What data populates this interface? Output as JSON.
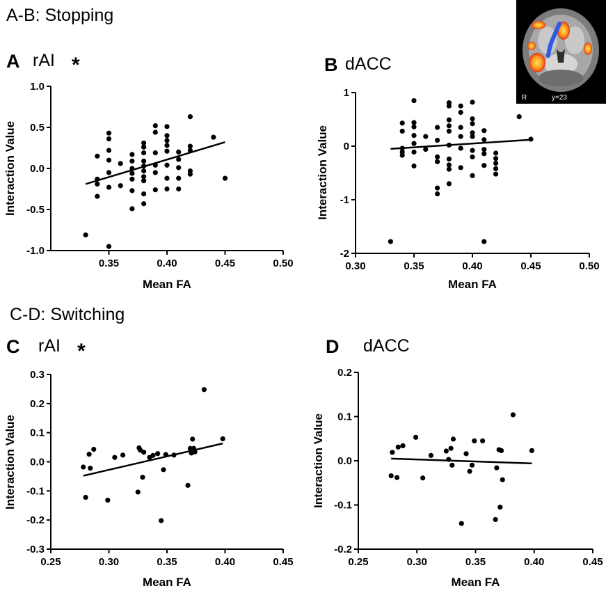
{
  "sections": {
    "stopping": "A-B: Stopping",
    "switching": "C-D: Switching"
  },
  "panels": [
    {
      "letter": "A",
      "name": "rAI",
      "significance": "*"
    },
    {
      "letter": "B",
      "name": "dACC",
      "significance": ""
    },
    {
      "letter": "C",
      "name": "rAI",
      "significance": "*"
    },
    {
      "letter": "D",
      "name": "dACC",
      "significance": ""
    }
  ],
  "inset": {
    "orientation": "R",
    "slice": "y=23"
  },
  "chart_data": [
    {
      "type": "scatter",
      "title": "rAI",
      "xlabel": "Mean FA",
      "ylabel": "Interaction Value",
      "xlim": [
        0.3,
        0.5
      ],
      "ylim": [
        -1.0,
        1.0
      ],
      "xticks": [
        "0.35",
        "0.40",
        "0.45",
        "0.50"
      ],
      "yticks": [
        "-1.0",
        "-0.5",
        "0.0",
        "0.5",
        "1.0"
      ],
      "points": [
        [
          0.33,
          -0.81
        ],
        [
          0.34,
          0.15
        ],
        [
          0.34,
          -0.13
        ],
        [
          0.34,
          -0.19
        ],
        [
          0.34,
          -0.34
        ],
        [
          0.35,
          0.43
        ],
        [
          0.35,
          0.36
        ],
        [
          0.35,
          0.22
        ],
        [
          0.35,
          0.1
        ],
        [
          0.35,
          -0.05
        ],
        [
          0.35,
          -0.23
        ],
        [
          0.35,
          -0.95
        ],
        [
          0.36,
          0.06
        ],
        [
          0.36,
          -0.21
        ],
        [
          0.37,
          0.17
        ],
        [
          0.37,
          0.09
        ],
        [
          0.37,
          0.0
        ],
        [
          0.37,
          -0.06
        ],
        [
          0.37,
          -0.13
        ],
        [
          0.37,
          -0.27
        ],
        [
          0.37,
          -0.49
        ],
        [
          0.38,
          0.31
        ],
        [
          0.38,
          0.26
        ],
        [
          0.38,
          0.19
        ],
        [
          0.38,
          0.09
        ],
        [
          0.38,
          0.03
        ],
        [
          0.38,
          -0.03
        ],
        [
          0.38,
          -0.1
        ],
        [
          0.38,
          -0.15
        ],
        [
          0.38,
          -0.31
        ],
        [
          0.38,
          -0.43
        ],
        [
          0.39,
          0.52
        ],
        [
          0.39,
          0.44
        ],
        [
          0.39,
          0.19
        ],
        [
          0.39,
          0.04
        ],
        [
          0.39,
          -0.05
        ],
        [
          0.39,
          -0.26
        ],
        [
          0.4,
          0.51
        ],
        [
          0.4,
          0.4
        ],
        [
          0.4,
          0.34
        ],
        [
          0.4,
          0.28
        ],
        [
          0.4,
          0.21
        ],
        [
          0.4,
          0.04
        ],
        [
          0.4,
          -0.12
        ],
        [
          0.4,
          -0.25
        ],
        [
          0.41,
          0.2
        ],
        [
          0.41,
          0.11
        ],
        [
          0.41,
          0.01
        ],
        [
          0.41,
          -0.12
        ],
        [
          0.41,
          -0.25
        ],
        [
          0.42,
          0.63
        ],
        [
          0.42,
          0.27
        ],
        [
          0.42,
          0.22
        ],
        [
          0.42,
          -0.03
        ],
        [
          0.42,
          -0.07
        ],
        [
          0.44,
          0.38
        ],
        [
          0.45,
          -0.12
        ]
      ],
      "fit": [
        [
          0.33,
          -0.19
        ],
        [
          0.45,
          0.32
        ]
      ]
    },
    {
      "type": "scatter",
      "title": "dACC",
      "xlabel": "Mean FA",
      "ylabel": "Interaction Value",
      "xlim": [
        0.3,
        0.5
      ],
      "ylim": [
        -2,
        1
      ],
      "xticks": [
        "0.30",
        "0.35",
        "0.40",
        "0.45",
        "0.50"
      ],
      "yticks": [
        "-2",
        "-1",
        "0",
        "1"
      ],
      "points": [
        [
          0.33,
          -1.78
        ],
        [
          0.34,
          0.43
        ],
        [
          0.34,
          0.28
        ],
        [
          0.34,
          -0.04
        ],
        [
          0.34,
          -0.11
        ],
        [
          0.34,
          -0.17
        ],
        [
          0.35,
          0.85
        ],
        [
          0.35,
          0.44
        ],
        [
          0.35,
          0.36
        ],
        [
          0.35,
          0.2
        ],
        [
          0.35,
          0.05
        ],
        [
          0.35,
          -0.11
        ],
        [
          0.35,
          -0.37
        ],
        [
          0.36,
          0.18
        ],
        [
          0.36,
          -0.06
        ],
        [
          0.37,
          0.35
        ],
        [
          0.37,
          0.11
        ],
        [
          0.37,
          -0.2
        ],
        [
          0.37,
          -0.29
        ],
        [
          0.37,
          -0.78
        ],
        [
          0.37,
          -0.89
        ],
        [
          0.38,
          0.81
        ],
        [
          0.38,
          0.75
        ],
        [
          0.38,
          0.49
        ],
        [
          0.38,
          0.38
        ],
        [
          0.38,
          0.28
        ],
        [
          0.38,
          0.02
        ],
        [
          0.38,
          -0.24
        ],
        [
          0.38,
          -0.35
        ],
        [
          0.38,
          -0.43
        ],
        [
          0.38,
          -0.7
        ],
        [
          0.39,
          0.75
        ],
        [
          0.39,
          0.63
        ],
        [
          0.39,
          0.35
        ],
        [
          0.39,
          0.18
        ],
        [
          0.39,
          -0.04
        ],
        [
          0.39,
          -0.4
        ],
        [
          0.4,
          0.82
        ],
        [
          0.4,
          0.51
        ],
        [
          0.4,
          0.42
        ],
        [
          0.4,
          0.25
        ],
        [
          0.4,
          0.18
        ],
        [
          0.4,
          -0.08
        ],
        [
          0.4,
          -0.2
        ],
        [
          0.4,
          -0.55
        ],
        [
          0.41,
          0.29
        ],
        [
          0.41,
          0.12
        ],
        [
          0.41,
          -0.06
        ],
        [
          0.41,
          -0.14
        ],
        [
          0.41,
          -0.36
        ],
        [
          0.41,
          -1.78
        ],
        [
          0.42,
          -0.13
        ],
        [
          0.42,
          -0.23
        ],
        [
          0.42,
          -0.32
        ],
        [
          0.42,
          -0.42
        ],
        [
          0.42,
          -0.52
        ],
        [
          0.44,
          0.55
        ],
        [
          0.45,
          0.13
        ]
      ],
      "fit": [
        [
          0.33,
          -0.05
        ],
        [
          0.45,
          0.12
        ]
      ]
    },
    {
      "type": "scatter",
      "title": "rAI",
      "xlabel": "Mean FA",
      "ylabel": "Interaction Value",
      "xlim": [
        0.25,
        0.45
      ],
      "ylim": [
        -0.3,
        0.3
      ],
      "xticks": [
        "0.25",
        "0.30",
        "0.35",
        "0.40",
        "0.45"
      ],
      "yticks": [
        "-0.3",
        "-0.2",
        "-0.1",
        "0.0",
        "0.1",
        "0.2",
        "0.3"
      ],
      "points": [
        [
          0.278,
          -0.018
        ],
        [
          0.28,
          -0.122
        ],
        [
          0.283,
          0.026
        ],
        [
          0.284,
          -0.022
        ],
        [
          0.287,
          0.043
        ],
        [
          0.299,
          -0.132
        ],
        [
          0.305,
          0.015
        ],
        [
          0.312,
          0.023
        ],
        [
          0.325,
          -0.104
        ],
        [
          0.326,
          0.048
        ],
        [
          0.327,
          0.04
        ],
        [
          0.329,
          -0.053
        ],
        [
          0.33,
          0.033
        ],
        [
          0.335,
          0.015
        ],
        [
          0.338,
          0.022
        ],
        [
          0.342,
          0.028
        ],
        [
          0.345,
          -0.202
        ],
        [
          0.347,
          -0.027
        ],
        [
          0.349,
          0.025
        ],
        [
          0.356,
          0.023
        ],
        [
          0.368,
          -0.081
        ],
        [
          0.37,
          0.046
        ],
        [
          0.371,
          0.03
        ],
        [
          0.372,
          0.078
        ],
        [
          0.373,
          0.046
        ],
        [
          0.374,
          0.034
        ],
        [
          0.382,
          0.248
        ],
        [
          0.398,
          0.079
        ]
      ],
      "fit": [
        [
          0.278,
          -0.048
        ],
        [
          0.398,
          0.063
        ]
      ]
    },
    {
      "type": "scatter",
      "title": "dACC",
      "xlabel": "Mean FA",
      "ylabel": "Interaction Value",
      "xlim": [
        0.25,
        0.45
      ],
      "ylim": [
        -0.2,
        0.2
      ],
      "xticks": [
        "0.25",
        "0.30",
        "0.35",
        "0.40",
        "0.45"
      ],
      "yticks": [
        "-0.2",
        "-0.1",
        "0.0",
        "0.1",
        "0.2"
      ],
      "points": [
        [
          0.278,
          -0.034
        ],
        [
          0.279,
          0.019
        ],
        [
          0.283,
          -0.038
        ],
        [
          0.284,
          0.031
        ],
        [
          0.288,
          0.034
        ],
        [
          0.299,
          0.053
        ],
        [
          0.305,
          -0.039
        ],
        [
          0.312,
          0.012
        ],
        [
          0.325,
          0.022
        ],
        [
          0.327,
          0.003
        ],
        [
          0.329,
          0.028
        ],
        [
          0.33,
          -0.01
        ],
        [
          0.331,
          0.049
        ],
        [
          0.338,
          -0.142
        ],
        [
          0.342,
          0.016
        ],
        [
          0.345,
          -0.024
        ],
        [
          0.347,
          -0.01
        ],
        [
          0.349,
          0.045
        ],
        [
          0.356,
          0.045
        ],
        [
          0.367,
          -0.133
        ],
        [
          0.368,
          -0.016
        ],
        [
          0.37,
          0.025
        ],
        [
          0.371,
          -0.105
        ],
        [
          0.372,
          0.023
        ],
        [
          0.373,
          -0.043
        ],
        [
          0.382,
          0.104
        ],
        [
          0.398,
          0.023
        ]
      ],
      "fit": [
        [
          0.278,
          0.005
        ],
        [
          0.398,
          -0.006
        ]
      ]
    }
  ]
}
